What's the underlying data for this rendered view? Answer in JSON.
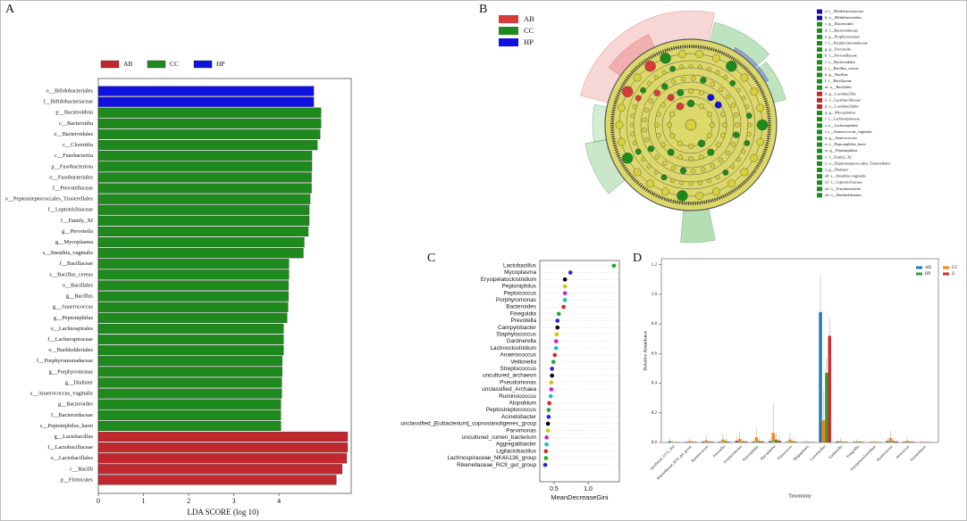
{
  "chart_data": [
    {
      "type": "bar",
      "orientation": "horizontal",
      "title": "A",
      "categories": [
        "o__Bifidobacteriales",
        "f__Bifidobacteriaceae",
        "p__Bacteroidota",
        "c__Bacteroidia",
        "o__Bacteroidales",
        "c__Clostridia",
        "c__Fusobacteriia",
        "p__Fusobacteriota",
        "o__Fusobacteriales",
        "f__Prevotellaceae",
        "o__Peptostreptococcales_Tissierellales",
        "f__Leptotrichiaceae",
        "f__Family_XI",
        "g__Prevotella",
        "g__Mycoplasma",
        "s__Sneathia_vaginalis",
        "f__Bacillaceae",
        "s__Bacillus_cereus",
        "o__Bacillales",
        "g__Bacillus",
        "g__Anaerococcus",
        "g__Peptoniphilus",
        "o__Lachnospirales",
        "f__Lachnospiraceae",
        "o__Burkholderiales",
        "f__Porphyromonadaceae",
        "g__Porphyromonas",
        "g__Dialister",
        "s__Anaerococcus_vaginalis",
        "g__Bacteroides",
        "f__Bacteroidaceae",
        "s__Peptoniphilus_harei",
        "g__Lactobacillus",
        "f__Lactobacillaceae",
        "o__Lactobacillales",
        "c__Bacilli",
        "p__Firmicutes"
      ],
      "series": [
        {
          "name": "AB",
          "color": "#c0282d",
          "values": [
            null,
            null,
            null,
            null,
            null,
            null,
            null,
            null,
            null,
            null,
            null,
            null,
            null,
            null,
            null,
            null,
            null,
            null,
            null,
            null,
            null,
            null,
            null,
            null,
            null,
            null,
            null,
            null,
            null,
            null,
            null,
            null,
            5.52,
            5.52,
            5.5,
            5.4,
            5.27
          ]
        },
        {
          "name": "CC",
          "color": "#1e8a1e",
          "values": [
            null,
            null,
            4.93,
            4.93,
            4.91,
            4.85,
            4.73,
            4.73,
            4.72,
            4.72,
            4.69,
            4.67,
            4.67,
            4.65,
            4.56,
            4.54,
            4.22,
            4.22,
            4.21,
            4.21,
            4.2,
            4.18,
            4.1,
            4.1,
            4.1,
            4.07,
            4.07,
            4.06,
            4.06,
            4.04,
            4.04,
            4.04,
            null,
            null,
            null,
            null,
            null
          ]
        },
        {
          "name": "HP",
          "color": "#1010e0",
          "values": [
            4.77,
            4.77,
            null,
            null,
            null,
            null,
            null,
            null,
            null,
            null,
            null,
            null,
            null,
            null,
            null,
            null,
            null,
            null,
            null,
            null,
            null,
            null,
            null,
            null,
            null,
            null,
            null,
            null,
            null,
            null,
            null,
            null,
            null,
            null,
            null,
            null,
            null
          ]
        }
      ],
      "xlim": [
        0,
        5.6
      ],
      "xticks": [
        0,
        1,
        2,
        3,
        4
      ],
      "xlabel": "LDA SCORE (log 10)"
    },
    {
      "type": "cladogram",
      "title": "B",
      "series": [
        {
          "name": "AB",
          "color": "#d63a3a"
        },
        {
          "name": "CC",
          "color": "#1e8a1e"
        },
        {
          "name": "HP",
          "color": "#1010e0"
        }
      ],
      "clades": [
        {
          "label": "a: f__Bifidobacteriaceae",
          "color": "#1010a0"
        },
        {
          "label": "b: o__Bifidobacteriales",
          "color": "#1010a0"
        },
        {
          "label": "c: g__Bacteroides",
          "color": "#1e8a1e"
        },
        {
          "label": "d: f__Bacteroidaceae",
          "color": "#1e8a1e"
        },
        {
          "label": "e: g__Porphyromonas",
          "color": "#1e8a1e"
        },
        {
          "label": "f: f__Porphyromonadaceae",
          "color": "#1e8a1e"
        },
        {
          "label": "g: g__Prevotella",
          "color": "#1e8a1e"
        },
        {
          "label": "h: f__Prevotellaceae",
          "color": "#1e8a1e"
        },
        {
          "label": "i: o__Bacteroidales",
          "color": "#1e8a1e"
        },
        {
          "label": "j: s__Bacillus_cereus",
          "color": "#1e8a1e"
        },
        {
          "label": "k: g__Bacillus",
          "color": "#1e8a1e"
        },
        {
          "label": "l: f__Bacillaceae",
          "color": "#1e8a1e"
        },
        {
          "label": "m: o__Bacillales",
          "color": "#1e8a1e"
        },
        {
          "label": "n: g__Lactobacillus",
          "color": "#c0282d"
        },
        {
          "label": "o: f__Lactobacillaceae",
          "color": "#c0282d"
        },
        {
          "label": "p: o__Lactobacillales",
          "color": "#c0282d"
        },
        {
          "label": "q: g__Mycoplasma",
          "color": "#1e8a1e"
        },
        {
          "label": "r: f__Lachnospiraceae",
          "color": "#1e8a1e"
        },
        {
          "label": "s: o__Lachnospirales",
          "color": "#1e8a1e"
        },
        {
          "label": "t: s__Anaerococcus_vaginalis",
          "color": "#1e8a1e"
        },
        {
          "label": "u: g__Anaerococcus",
          "color": "#1e8a1e"
        },
        {
          "label": "v: s__Peptoniphilus_harei",
          "color": "#1e8a1e"
        },
        {
          "label": "w: g__Peptoniphilus",
          "color": "#1e8a1e"
        },
        {
          "label": "x: f__Family_XI",
          "color": "#1e8a1e"
        },
        {
          "label": "y: o__Peptostreptococcales_Tissierellales",
          "color": "#1e8a1e"
        },
        {
          "label": "z: g__Dialister",
          "color": "#1e8a1e"
        },
        {
          "label": "a0: s__Sneathia_vaginalis",
          "color": "#1e8a1e"
        },
        {
          "label": "a1: f__Leptotrichiaceae",
          "color": "#1e8a1e"
        },
        {
          "label": "a2: o__Fusobacteriales",
          "color": "#1e8a1e"
        },
        {
          "label": "a3: o__Burkholderiales",
          "color": "#1e8a1e"
        }
      ]
    },
    {
      "type": "dot",
      "title": "C",
      "categories": [
        "Lactobacillus",
        "Mycoplasma",
        "Erysipelatoclostridium",
        "Peptoniphilus",
        "Peptococcus",
        "Porphyromonas",
        "Bacteroides",
        "Finegoldia",
        "Prevotella",
        "Campylobacter",
        "Staphylococcus",
        "Gardnerella",
        "Lachnoclostridium",
        "Anaerococcus",
        "Veillonella",
        "Streptococcus",
        "uncultured_archaeon",
        "Pseudomonas",
        "unclassified_Archaea",
        "Ruminococcus",
        "Atopobium",
        "Peptostreptococcus",
        "Acinetobacter",
        "unclassified_[Eubacterium]_coprostanoligenes_group",
        "Parvimonas",
        "uncultured_rumen_bacterium",
        "Aggregatibacter",
        "Ligilactobacillus",
        "Lachnospiraceae_NK4A136_group",
        "Rikenellaceae_RC9_gut_group"
      ],
      "values": [
        1.38,
        0.74,
        0.66,
        0.66,
        0.66,
        0.66,
        0.64,
        0.57,
        0.55,
        0.55,
        0.54,
        0.53,
        0.53,
        0.51,
        0.49,
        0.47,
        0.47,
        0.46,
        0.46,
        0.45,
        0.43,
        0.42,
        0.42,
        0.41,
        0.41,
        0.39,
        0.39,
        0.38,
        0.38,
        0.37
      ],
      "colors": [
        "#22aa22",
        "#2222dd",
        "#000000",
        "#cccc00",
        "#cc22cc",
        "#22bbbb",
        "#dd2222",
        "#22aa22",
        "#2222dd",
        "#000000",
        "#cccc00",
        "#cc22cc",
        "#22bbbb",
        "#dd2222",
        "#22aa22",
        "#2222dd",
        "#000000",
        "#cccc00",
        "#cc22cc",
        "#22bbbb",
        "#dd2222",
        "#22aa22",
        "#2222dd",
        "#000000",
        "#cccc00",
        "#cc22cc",
        "#22bbbb",
        "#dd2222",
        "#22aa22",
        "#2222dd"
      ],
      "xlim": [
        0.29,
        1.46
      ],
      "xticks": [
        0.5,
        {
          "value": 1,
          "label": "1.0"
        }
      ],
      "xlabel": "MeanDecreaseGini"
    },
    {
      "type": "bar",
      "title": "D",
      "categories": [
        "uncultured_UCG_002",
        "Rikenellaceae_RC9_gut_group",
        "Ruminococcus",
        "Prevotella",
        "Porphyromonas",
        "Peptoniphilus",
        "Mycoplasma",
        "Peptococcus",
        "Megasphaera",
        "Lactobacillus",
        "Gardnerella",
        "Finegoldia",
        "Erysipelatoclostridium",
        "Anaerococcus",
        "Aerococcus",
        "Acinetobacter"
      ],
      "series": [
        {
          "name": "AB",
          "color": "#1f77b4",
          "values": [
            0.008,
            0.004,
            0.006,
            0.005,
            0.012,
            0.006,
            0.01,
            0.004,
            0.003,
            0.88,
            0.006,
            0.004,
            0.003,
            0.01,
            0.005,
            0.003
          ],
          "errors": [
            0.02,
            0.01,
            0.015,
            0.01,
            0.03,
            0.015,
            0.02,
            0.01,
            0.008,
            0.25,
            0.015,
            0.01,
            0.008,
            0.02,
            0.012,
            0.008
          ]
        },
        {
          "name": "CC",
          "color": "#ff7f0e",
          "values": [
            0.004,
            0.01,
            0.015,
            0.02,
            0.025,
            0.035,
            0.065,
            0.02,
            0.005,
            0.15,
            0.01,
            0.008,
            0.006,
            0.03,
            0.012,
            0.004
          ],
          "errors": [
            0.01,
            0.02,
            0.03,
            0.04,
            0.05,
            0.06,
            0.2,
            0.04,
            0.01,
            0.2,
            0.02,
            0.015,
            0.012,
            0.05,
            0.025,
            0.008
          ]
        },
        {
          "name": "HP",
          "color": "#2ca02c",
          "values": [
            0.003,
            0.005,
            0.006,
            0.01,
            0.008,
            0.01,
            0.02,
            0.008,
            0.003,
            0.47,
            0.004,
            0.005,
            0.004,
            0.01,
            0.006,
            0.002
          ],
          "errors": [
            0.006,
            0.01,
            0.012,
            0.02,
            0.015,
            0.02,
            0.05,
            0.015,
            0.006,
            0.1,
            0.008,
            0.01,
            0.008,
            0.02,
            0.012,
            0.004
          ]
        },
        {
          "name": "Z",
          "color": "#d62728",
          "values": [
            0.002,
            0.003,
            0.005,
            0.004,
            0.006,
            0.006,
            0.012,
            0.004,
            0.002,
            0.72,
            0.004,
            0.003,
            0.002,
            0.006,
            0.004,
            0.002
          ],
          "errors": [
            0.004,
            0.006,
            0.01,
            0.008,
            0.012,
            0.012,
            0.03,
            0.008,
            0.004,
            0.12,
            0.008,
            0.006,
            0.004,
            0.012,
            0.008,
            0.004
          ]
        }
      ],
      "ylim": [
        0,
        1.24
      ],
      "yticks": [
        {
          "value": 0,
          "label": "0.0"
        },
        0.2,
        0.4,
        0.6,
        0.8,
        {
          "value": 1,
          "label": "1.0"
        },
        1.2
      ],
      "ylabel": "Relative Abundance",
      "xlabel": "Taxonomy"
    }
  ]
}
